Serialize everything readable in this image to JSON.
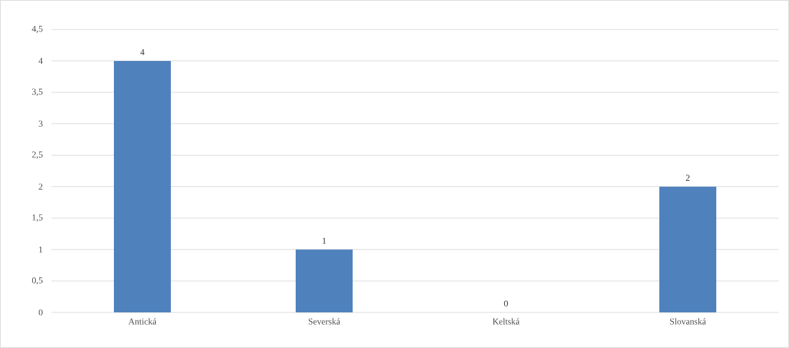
{
  "chart_data": {
    "type": "bar",
    "categories": [
      "Antická",
      "Severská",
      "Keltská",
      "Slovanská"
    ],
    "values": [
      4,
      1,
      0,
      2
    ],
    "color": "#4f81bd",
    "ylim": [
      0,
      4.5
    ],
    "yticks": [
      0,
      {
        "value": 0.5,
        "label": "0,5"
      },
      1,
      {
        "value": 1.5,
        "label": "1,5"
      },
      2,
      {
        "value": 2.5,
        "label": "2,5"
      },
      3,
      {
        "value": 3.5,
        "label": "3,5"
      },
      4,
      {
        "value": 4.5,
        "label": "4,5"
      }
    ],
    "grid": "y",
    "data_labels": true
  }
}
